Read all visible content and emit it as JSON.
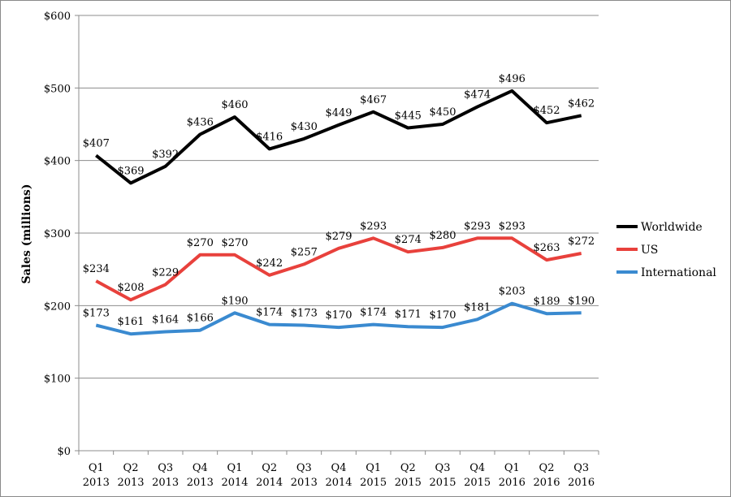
{
  "chart_data": {
    "type": "line",
    "title": "",
    "xlabel": "",
    "ylabel": "Sales (millions)",
    "ylim": [
      0,
      600
    ],
    "y_ticks": [
      0,
      100,
      200,
      300,
      400,
      500,
      600
    ],
    "y_tick_labels": [
      "$0",
      "$100",
      "$200",
      "$300",
      "$400",
      "$500",
      "$600"
    ],
    "grid": true,
    "legend_position": "right",
    "categories": [
      [
        "Q1",
        "2013"
      ],
      [
        "Q2",
        "2013"
      ],
      [
        "Q3",
        "2013"
      ],
      [
        "Q4",
        "2013"
      ],
      [
        "Q1",
        "2014"
      ],
      [
        "Q2",
        "2014"
      ],
      [
        "Q3",
        "2013"
      ],
      [
        "Q4",
        "2014"
      ],
      [
        "Q1",
        "2015"
      ],
      [
        "Q2",
        "2015"
      ],
      [
        "Q3",
        "2015"
      ],
      [
        "Q4",
        "2015"
      ],
      [
        "Q1",
        "2016"
      ],
      [
        "Q2",
        "2016"
      ],
      [
        "Q3",
        "2016"
      ]
    ],
    "series": [
      {
        "name": "Worldwide",
        "color": "#000000",
        "values": [
          407,
          369,
          392,
          436,
          460,
          416,
          430,
          449,
          467,
          445,
          450,
          474,
          496,
          452,
          462
        ],
        "labels": [
          "$407",
          "$369",
          "$392",
          "$436",
          "$460",
          "$416",
          "$430",
          "$449",
          "$467",
          "$445",
          "$450",
          "$474",
          "$496",
          "$452",
          "$462"
        ]
      },
      {
        "name": "US",
        "color": "#e8413c",
        "values": [
          234,
          208,
          229,
          270,
          270,
          242,
          257,
          279,
          293,
          274,
          280,
          293,
          293,
          263,
          272
        ],
        "labels": [
          "$234",
          "$208",
          "$229",
          "$270",
          "$270",
          "$242",
          "$257",
          "$279",
          "$293",
          "$274",
          "$280",
          "$293",
          "$293",
          "$263",
          "$272"
        ]
      },
      {
        "name": "International",
        "color": "#3a8ad0",
        "values": [
          173,
          161,
          164,
          166,
          190,
          174,
          173,
          170,
          174,
          171,
          170,
          181,
          203,
          189,
          190
        ],
        "labels": [
          "$173",
          "$161",
          "$164",
          "$166",
          "$190",
          "$174",
          "$173",
          "$170",
          "$174",
          "$171",
          "$170",
          "$181",
          "$203",
          "$189",
          "$190"
        ]
      }
    ]
  }
}
